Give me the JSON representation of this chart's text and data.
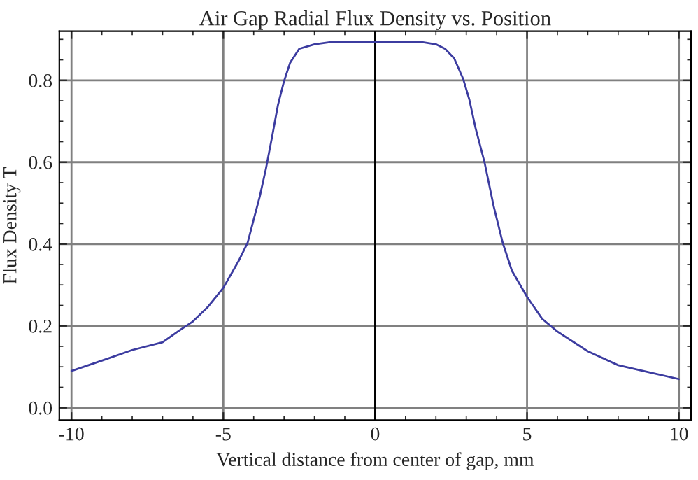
{
  "chart_data": {
    "type": "line",
    "title": "Air Gap Radial Flux Density vs. Position",
    "xlabel": "Vertical distance from center of gap, mm",
    "ylabel": "Flux Density T",
    "series": [
      {
        "color": "#3c3ca0",
        "x": [
          -10,
          -9,
          -8,
          -7,
          -6.5,
          -6,
          -5.5,
          -5,
          -4.5,
          -4.2,
          -4,
          -3.8,
          -3.6,
          -3.4,
          -3.2,
          -3,
          -2.8,
          -2.5,
          -2,
          -1.5,
          0,
          1.5,
          2,
          2.3,
          2.6,
          2.9,
          3.1,
          3.3,
          3.6,
          3.9,
          4.2,
          4.5,
          5,
          5.5,
          6,
          7,
          8,
          9,
          10
        ],
        "values": [
          0.09,
          0.115,
          0.141,
          0.16,
          0.186,
          0.211,
          0.247,
          0.293,
          0.358,
          0.403,
          0.46,
          0.516,
          0.583,
          0.66,
          0.74,
          0.798,
          0.843,
          0.877,
          0.888,
          0.893,
          0.894,
          0.894,
          0.888,
          0.877,
          0.854,
          0.803,
          0.753,
          0.685,
          0.6,
          0.493,
          0.403,
          0.335,
          0.271,
          0.217,
          0.186,
          0.138,
          0.104,
          0.087,
          0.07
        ]
      }
    ],
    "xlim": [
      -10.4,
      10.4
    ],
    "ylim": [
      -0.03,
      0.92
    ],
    "xticks": [
      -10,
      -5,
      0,
      5,
      10
    ],
    "yticks": [
      {
        "value": 0,
        "label": "0.0"
      },
      0.2,
      0.4,
      0.6,
      0.8
    ],
    "ref_lines": [
      {
        "axis": "x",
        "value": 0,
        "color": "#000000"
      }
    ],
    "grid": true
  }
}
